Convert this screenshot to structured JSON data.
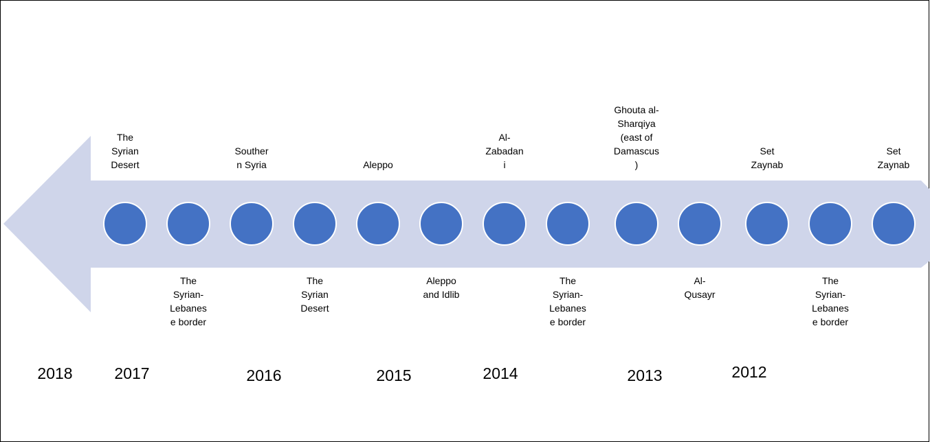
{
  "nodes": [
    {
      "lines": [
        "The",
        "Syrian",
        "Desert"
      ]
    },
    {
      "lines": [
        "The",
        "Syrian-",
        "Lebanes",
        "e border"
      ]
    },
    {
      "lines": [
        "Souther",
        "n Syria"
      ]
    },
    {
      "lines": [
        "The",
        "Syrian",
        "Desert"
      ]
    },
    {
      "lines": [
        "Aleppo"
      ]
    },
    {
      "lines": [
        "Aleppo",
        "and Idlib"
      ]
    },
    {
      "lines": [
        "Al-",
        "Zabadan",
        "i"
      ]
    },
    {
      "lines": [
        "The",
        "Syrian-",
        "Lebanes",
        "e border"
      ]
    },
    {
      "lines": [
        "Ghouta al-",
        "Sharqiya",
        "(east of",
        "Damascus",
        ")"
      ]
    },
    {
      "lines": [
        "Al-",
        "Qusayr"
      ]
    },
    {
      "lines": [
        "Set",
        "Zaynab"
      ]
    },
    {
      "lines": [
        "The",
        "Syrian-",
        "Lebanes",
        "e border"
      ]
    },
    {
      "lines": [
        "Set",
        "Zaynab"
      ]
    }
  ],
  "years": [
    "2018",
    "2017",
    "2016",
    "2015",
    "2014",
    "2013",
    "2012"
  ]
}
